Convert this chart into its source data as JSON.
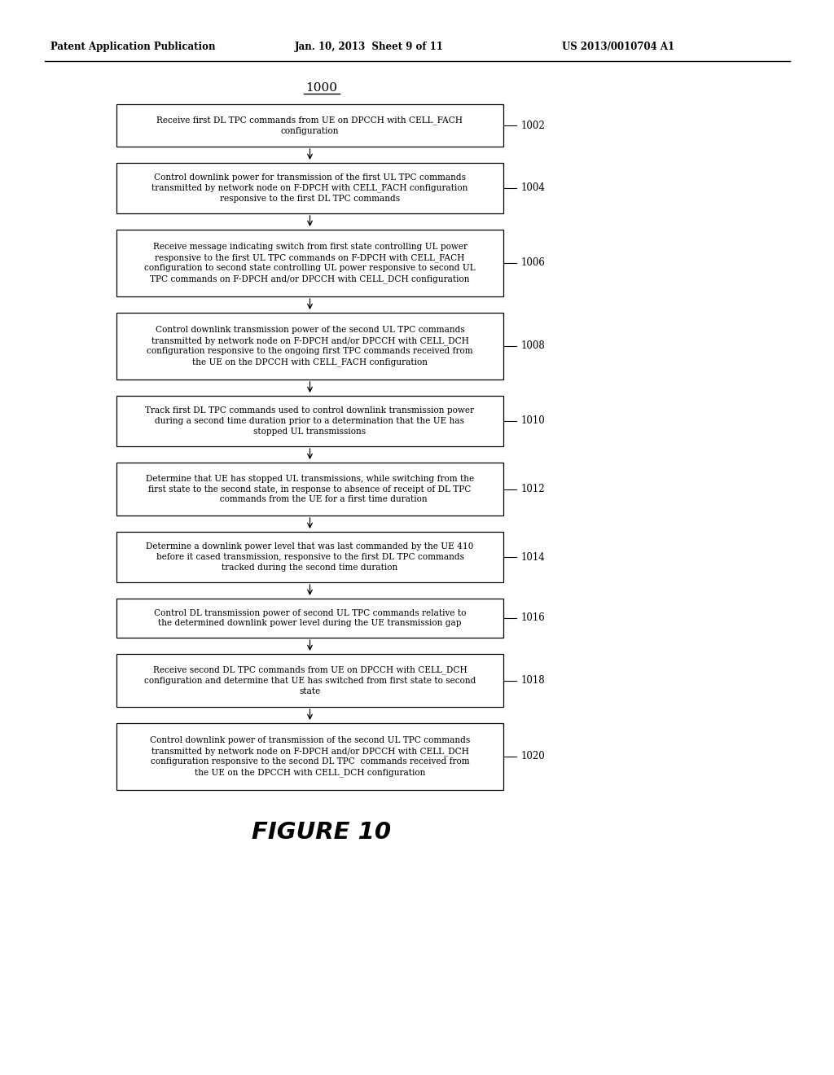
{
  "header_left": "Patent Application Publication",
  "header_center": "Jan. 10, 2013  Sheet 9 of 11",
  "header_right": "US 2013/0010704 A1",
  "diagram_number": "1000",
  "figure_label": "FIGURE 10",
  "background_color": "#ffffff",
  "box_edge_color": "#000000",
  "boxes": [
    {
      "id": "1002",
      "label": "1002",
      "text": "Receive first DL TPC commands from UE on DPCCH with CELL_FACH\nconfiguration"
    },
    {
      "id": "1004",
      "label": "1004",
      "text": "Control downlink power for transmission of the first UL TPC commands\ntransmitted by network node on F-DPCH with CELL_FACH configuration\nresponsive to the first DL TPC commands"
    },
    {
      "id": "1006",
      "label": "1006",
      "text": "Receive message indicating switch from first state controlling UL power\nresponsive to the first UL TPC commands on F-DPCH with CELL_FACH\nconfiguration to second state controlling UL power responsive to second UL\nTPC commands on F-DPCH and/or DPCCH with CELL_DCH configuration"
    },
    {
      "id": "1008",
      "label": "1008",
      "text": "Control downlink transmission power of the second UL TPC commands\ntransmitted by network node on F-DPCH and/or DPCCH with CELL_DCH\nconfiguration responsive to the ongoing first TPC commands received from\nthe UE on the DPCCH with CELL_FACH configuration"
    },
    {
      "id": "1010",
      "label": "1010",
      "text": "Track first DL TPC commands used to control downlink transmission power\nduring a second time duration prior to a determination that the UE has\nstopped UL transmissions"
    },
    {
      "id": "1012",
      "label": "1012",
      "text": "Determine that UE has stopped UL transmissions, while switching from the\nfirst state to the second state, in response to absence of receipt of DL TPC\n          commands from the UE for a first time duration"
    },
    {
      "id": "1014",
      "label": "1014",
      "text": "Determine a downlink power level that was last commanded by the UE 410\nbefore it cased transmission, responsive to the first DL TPC commands\ntracked during the second time duration"
    },
    {
      "id": "1016",
      "label": "1016",
      "text": "Control DL transmission power of second UL TPC commands relative to\nthe determined downlink power level during the UE transmission gap"
    },
    {
      "id": "1018",
      "label": "1018",
      "text": "Receive second DL TPC commands from UE on DPCCH with CELL_DCH\nconfiguration and determine that UE has switched from first state to second\nstate"
    },
    {
      "id": "1020",
      "label": "1020",
      "text": "Control downlink power of transmission of the second UL TPC commands\ntransmitted by network node on F-DPCH and/or DPCCH with CELL_DCH\nconfiguration responsive to the second DL TPC  commands received from\nthe UE on the DPCCH with CELL_DCH configuration"
    }
  ]
}
